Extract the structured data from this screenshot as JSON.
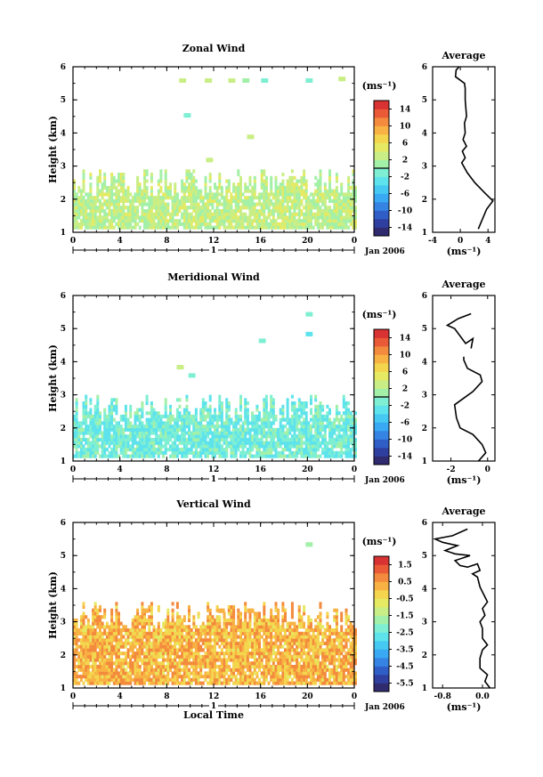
{
  "figure": {
    "date_label": "Jan 2006",
    "bottom_xlabel": "Local Time",
    "ylabel": "Height (km)",
    "unit_label": "(ms⁻¹)",
    "profile_title": "Average",
    "day_label": "1"
  },
  "chart_data": [
    {
      "type": "heatmap",
      "title": "Zonal Wind",
      "xlabel": "",
      "ylabel": "Height (km)",
      "x_ticks": [
        "0",
        "4",
        "8",
        "12",
        "16",
        "20",
        "0"
      ],
      "xlim": [
        0,
        24
      ],
      "y_ticks": [
        "1",
        "2",
        "3",
        "4",
        "5",
        "6"
      ],
      "ylim": [
        1,
        6
      ],
      "colorbar": {
        "ticks": [
          "14",
          "10",
          "6",
          "2",
          "-2",
          "-6",
          "-10",
          "-14"
        ],
        "range": [
          -16,
          16
        ],
        "zero_line": 0
      },
      "data_coverage": {
        "bulk_height_range_km": [
          1.1,
          2.5
        ],
        "bulk_value_range_ms": [
          0,
          5
        ],
        "sparse_echoes": [
          {
            "time_h": 9.2,
            "height_km": 5.6,
            "value": 2
          },
          {
            "time_h": 9.6,
            "height_km": 4.55,
            "value": -2
          },
          {
            "time_h": 11.4,
            "height_km": 5.6,
            "value": 3
          },
          {
            "time_h": 13.4,
            "height_km": 5.6,
            "value": 2
          },
          {
            "time_h": 14.6,
            "height_km": 5.6,
            "value": 1
          },
          {
            "time_h": 15.0,
            "height_km": 3.9,
            "value": 3
          },
          {
            "time_h": 16.2,
            "height_km": 5.6,
            "value": -1
          },
          {
            "time_h": 20.0,
            "height_km": 5.6,
            "value": -2
          },
          {
            "time_h": 22.8,
            "height_km": 5.65,
            "value": 3
          },
          {
            "time_h": 11.5,
            "height_km": 3.2,
            "value": 2
          }
        ]
      },
      "profile": {
        "title": "Average",
        "xlabel": "(ms⁻¹)",
        "x_ticks": [
          "-4",
          "0",
          "4"
        ],
        "xlim": [
          -4,
          5
        ],
        "y_ticks": [
          "1",
          "2",
          "3",
          "4",
          "5",
          "6"
        ],
        "ylim": [
          1,
          6
        ],
        "points": [
          [
            2.6,
            1.1
          ],
          [
            3.2,
            1.4
          ],
          [
            3.8,
            1.7
          ],
          [
            4.7,
            1.95
          ],
          [
            3.5,
            2.2
          ],
          [
            2.1,
            2.5
          ],
          [
            1.0,
            2.8
          ],
          [
            0.2,
            3.1
          ],
          [
            0.7,
            3.25
          ],
          [
            0.3,
            3.45
          ],
          [
            0.9,
            3.6
          ],
          [
            0.4,
            3.8
          ],
          [
            0.7,
            4.0
          ],
          [
            0.6,
            4.3
          ],
          [
            0.9,
            4.5
          ],
          [
            0.7,
            5.0
          ],
          [
            0.7,
            5.35
          ],
          [
            0.6,
            5.5
          ],
          [
            -0.7,
            5.7
          ],
          [
            -0.6,
            5.9
          ],
          [
            0.7,
            6.2
          ],
          [
            1.0,
            6.35
          ]
        ]
      }
    },
    {
      "type": "heatmap",
      "title": "Meridional Wind",
      "xlabel": "",
      "ylabel": "Height (km)",
      "x_ticks": [
        "0",
        "4",
        "8",
        "12",
        "16",
        "20",
        "0"
      ],
      "xlim": [
        0,
        24
      ],
      "y_ticks": [
        "1",
        "2",
        "3",
        "4",
        "5",
        "6"
      ],
      "ylim": [
        1,
        6
      ],
      "colorbar": {
        "ticks": [
          "14",
          "10",
          "6",
          "2",
          "-2",
          "-6",
          "-10",
          "-14"
        ],
        "range": [
          -16,
          16
        ],
        "zero_line": 0
      },
      "data_coverage": {
        "bulk_height_range_km": [
          1.1,
          2.6
        ],
        "bulk_value_range_ms": [
          -4,
          1
        ],
        "sparse_echoes": [
          {
            "time_h": 20.0,
            "height_km": 5.45,
            "value": -2
          },
          {
            "time_h": 20.0,
            "height_km": 4.85,
            "value": -3
          },
          {
            "time_h": 16.0,
            "height_km": 4.65,
            "value": -1
          },
          {
            "time_h": 9.0,
            "height_km": 3.85,
            "value": 2
          },
          {
            "time_h": 10.0,
            "height_km": 3.6,
            "value": -2
          }
        ]
      },
      "profile": {
        "title": "Average",
        "xlabel": "(ms⁻¹)",
        "x_ticks": [
          "-2",
          "0"
        ],
        "xlim": [
          -3,
          0.4
        ],
        "y_ticks": [
          "1",
          "2",
          "3",
          "4",
          "5",
          "6"
        ],
        "ylim": [
          1,
          6
        ],
        "points": [
          [
            -0.5,
            1.0
          ],
          [
            -0.1,
            1.25
          ],
          [
            -0.3,
            1.5
          ],
          [
            -0.8,
            1.8
          ],
          [
            -1.5,
            2.0
          ],
          [
            -1.7,
            2.3
          ],
          [
            -1.8,
            2.7
          ],
          [
            -1.3,
            2.9
          ],
          [
            -0.8,
            3.1
          ],
          [
            -0.3,
            3.4
          ],
          [
            -0.4,
            3.6
          ],
          [
            -1.1,
            3.8
          ],
          [
            -1.3,
            4.05
          ],
          [
            -1.3,
            4.15
          ]
        ],
        "points_upper": [
          [
            -0.9,
            4.4
          ],
          [
            -0.8,
            4.7
          ],
          [
            -1.2,
            4.55
          ],
          [
            -1.8,
            5.0
          ],
          [
            -2.2,
            5.1
          ],
          [
            -1.6,
            5.3
          ],
          [
            -0.9,
            5.45
          ]
        ]
      }
    },
    {
      "type": "heatmap",
      "title": "Vertical Wind",
      "xlabel": "Local Time",
      "ylabel": "Height (km)",
      "x_ticks": [
        "0",
        "4",
        "8",
        "12",
        "16",
        "20",
        "0"
      ],
      "xlim": [
        0,
        24
      ],
      "y_ticks": [
        "1",
        "2",
        "3",
        "4",
        "5",
        "6"
      ],
      "ylim": [
        1,
        6
      ],
      "colorbar": {
        "ticks": [
          "1.5",
          "0.5",
          "-0.5",
          "-1.5",
          "-2.5",
          "-3.5",
          "-4.5",
          "-5.5"
        ],
        "range": [
          -6,
          2
        ],
        "zero_line": null
      },
      "data_coverage": {
        "bulk_height_range_km": [
          1.1,
          3.2
        ],
        "bulk_value_range_ms": [
          -0.6,
          1.0
        ],
        "sparse_echoes": [
          {
            "time_h": 20.0,
            "height_km": 5.35,
            "value": -1.6
          },
          {
            "time_h": 6.0,
            "height_km": 3.35,
            "value": 0.1
          },
          {
            "time_h": 12.5,
            "height_km": 3.35,
            "value": 0.3
          },
          {
            "time_h": 15.0,
            "height_km": 3.35,
            "value": 0.4
          }
        ]
      },
      "profile": {
        "title": "Average",
        "xlabel": "(ms⁻¹)",
        "x_ticks": [
          "-0.8",
          "0.0"
        ],
        "xlim": [
          -1.0,
          0.25
        ],
        "y_ticks": [
          "1",
          "2",
          "3",
          "4",
          "5",
          "6"
        ],
        "ylim": [
          1,
          6
        ],
        "points": [
          [
            0.15,
            1.0
          ],
          [
            0.05,
            1.2
          ],
          [
            0.1,
            1.4
          ],
          [
            -0.05,
            1.6
          ],
          [
            -0.05,
            1.9
          ],
          [
            0.0,
            2.15
          ],
          [
            0.1,
            2.3
          ],
          [
            0.0,
            2.5
          ],
          [
            0.0,
            2.8
          ],
          [
            -0.05,
            3.0
          ],
          [
            0.05,
            3.2
          ],
          [
            0.0,
            3.4
          ],
          [
            0.1,
            3.6
          ],
          [
            0.0,
            3.9
          ],
          [
            -0.05,
            4.05
          ],
          [
            -0.1,
            4.35
          ],
          [
            -0.2,
            4.45
          ],
          [
            -0.05,
            4.55
          ],
          [
            -0.1,
            4.75
          ],
          [
            -0.3,
            4.65
          ],
          [
            -0.45,
            4.7
          ],
          [
            -0.55,
            4.85
          ],
          [
            -0.25,
            5.0
          ],
          [
            -0.55,
            5.05
          ],
          [
            -0.75,
            5.15
          ],
          [
            -0.5,
            5.3
          ],
          [
            -0.8,
            5.4
          ],
          [
            -0.95,
            5.5
          ],
          [
            -0.6,
            5.6
          ],
          [
            -0.3,
            5.8
          ]
        ]
      }
    }
  ]
}
